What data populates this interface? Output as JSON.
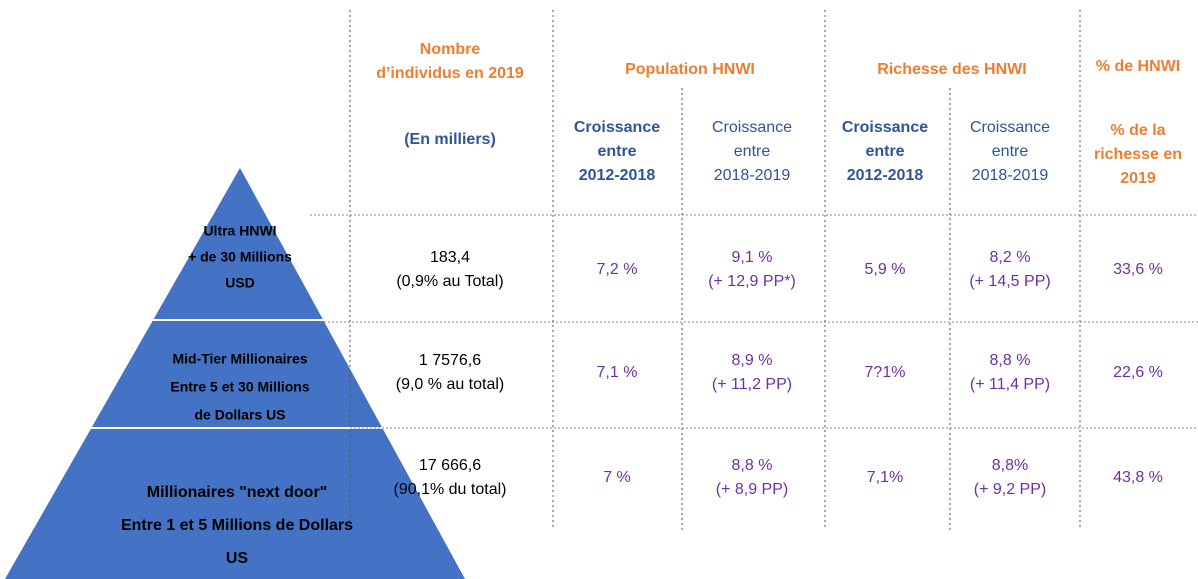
{
  "headers": {
    "count": {
      "title": [
        "Nombre",
        "d’individus en 2019"
      ],
      "unit": "(En milliers)"
    },
    "population": {
      "title": "Population HNWI",
      "sub": [
        [
          "Croissance",
          "entre",
          "2012-2018"
        ],
        [
          "Croissance",
          "entre",
          "2018-2019"
        ]
      ]
    },
    "wealth": {
      "title": "Richesse des HNWI",
      "sub": [
        [
          "Croissance",
          "entre",
          "2012-2018"
        ],
        [
          "Croissance",
          "entre",
          "2018-2019"
        ]
      ]
    },
    "share": {
      "title": "% de HNWI",
      "sub": [
        "% de la",
        "richesse en",
        "2019"
      ]
    }
  },
  "rows": [
    {
      "label": [
        "Ultra HNWI",
        "+ de 30 Millions",
        "USD"
      ],
      "cells": [
        [
          "183,4",
          "(0,9% au Total)"
        ],
        [
          "7,2 %"
        ],
        [
          "9,1 %",
          "(+ 12,9 PP*)"
        ],
        [
          "5,9 %"
        ],
        [
          "8,2 %",
          "(+ 14,5 PP)"
        ],
        [
          "33,6 %"
        ]
      ]
    },
    {
      "label": [
        "Mid-Tier Millionaires",
        "Entre 5 et 30 Millions",
        "de Dollars US"
      ],
      "cells": [
        [
          "1 7576,6",
          "(9,0 % au total)"
        ],
        [
          "7,1 %"
        ],
        [
          "8,9 %",
          "(+ 11,2 PP)"
        ],
        [
          "7?1%"
        ],
        [
          "8,8 %",
          "(+ 11,4 PP)"
        ],
        [
          "22,6 %"
        ]
      ]
    },
    {
      "label": [
        "Millionaires \"next door\"",
        "Entre 1 et 5 Millions de Dollars",
        "US"
      ],
      "cells": [
        [
          "17 666,6",
          "(90,1% du total)"
        ],
        [
          "7 %"
        ],
        [
          "8,8 %",
          "(+ 8,9 PP)"
        ],
        [
          "7,1%"
        ],
        [
          "8,8%",
          "(+ 9,2 PP)"
        ],
        [
          "43,8 %"
        ]
      ]
    }
  ]
}
